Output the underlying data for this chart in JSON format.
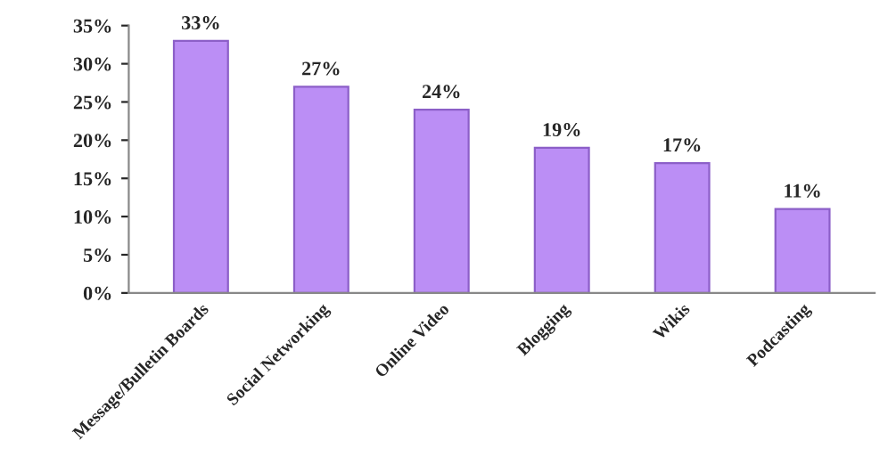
{
  "chart_data": {
    "type": "bar",
    "categories": [
      "Message/Bulletin Boards",
      "Social Networking",
      "Online Video",
      "Blogging",
      "Wikis",
      "Podcasting"
    ],
    "values": [
      33,
      27,
      24,
      19,
      17,
      11
    ],
    "value_labels": [
      "33%",
      "27%",
      "24%",
      "19%",
      "17%",
      "11%"
    ],
    "color": "#bb8ef5",
    "ylim": [
      0,
      35
    ],
    "yticks": [
      {
        "value": 0,
        "label": "0%"
      },
      {
        "value": 5,
        "label": "5%"
      },
      {
        "value": 10,
        "label": "10%"
      },
      {
        "value": 15,
        "label": "15%"
      },
      {
        "value": 20,
        "label": "20%"
      },
      {
        "value": 25,
        "label": "25%"
      },
      {
        "value": 30,
        "label": "30%"
      },
      {
        "value": 35,
        "label": "35%"
      }
    ],
    "grid": false
  }
}
